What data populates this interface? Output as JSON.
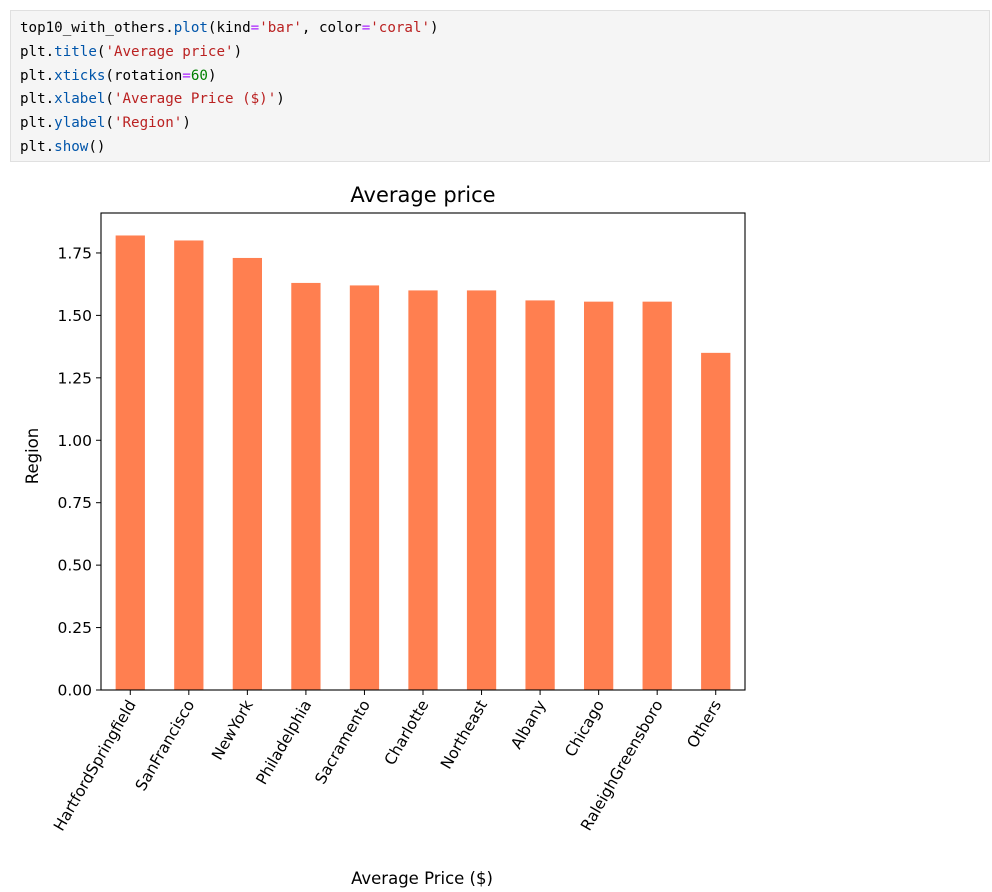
{
  "code": {
    "lines": [
      [
        {
          "t": "top10_with_others."
        },
        {
          "t": "plot",
          "c": "fn"
        },
        {
          "t": "(kind"
        },
        {
          "t": "=",
          "c": "op"
        },
        {
          "t": "'bar'",
          "c": "str"
        },
        {
          "t": ", color"
        },
        {
          "t": "=",
          "c": "op"
        },
        {
          "t": "'coral'",
          "c": "str"
        },
        {
          "t": ")"
        }
      ],
      [
        {
          "t": "plt."
        },
        {
          "t": "title",
          "c": "fn"
        },
        {
          "t": "("
        },
        {
          "t": "'Average price'",
          "c": "str"
        },
        {
          "t": ")"
        }
      ],
      [
        {
          "t": "plt."
        },
        {
          "t": "xticks",
          "c": "fn"
        },
        {
          "t": "(rotation"
        },
        {
          "t": "=",
          "c": "op"
        },
        {
          "t": "60",
          "c": "num"
        },
        {
          "t": ")"
        }
      ],
      [
        {
          "t": "plt."
        },
        {
          "t": "xlabel",
          "c": "fn"
        },
        {
          "t": "("
        },
        {
          "t": "'Average Price ($)'",
          "c": "str"
        },
        {
          "t": ")"
        }
      ],
      [
        {
          "t": "plt."
        },
        {
          "t": "ylabel",
          "c": "fn"
        },
        {
          "t": "("
        },
        {
          "t": "'Region'",
          "c": "str"
        },
        {
          "t": ")"
        }
      ],
      [
        {
          "t": "plt."
        },
        {
          "t": "show",
          "c": "fn"
        },
        {
          "t": "()"
        }
      ]
    ]
  },
  "chart_data": {
    "type": "bar",
    "title": "Average price",
    "xlabel": "Average Price ($)",
    "ylabel": "Region",
    "categories": [
      "HartfordSpringfield",
      "SanFrancisco",
      "NewYork",
      "Philadelphia",
      "Sacramento",
      "Charlotte",
      "Northeast",
      "Albany",
      "Chicago",
      "RaleighGreensboro",
      "Others"
    ],
    "values": [
      1.82,
      1.8,
      1.73,
      1.63,
      1.62,
      1.6,
      1.6,
      1.56,
      1.555,
      1.555,
      1.35
    ],
    "ylim": [
      0,
      1.91
    ],
    "yticks": [
      "0.00",
      "0.25",
      "0.50",
      "0.75",
      "1.00",
      "1.25",
      "1.50",
      "1.75"
    ],
    "xtick_rotation": 60,
    "bar_color": "#ff7f50",
    "grid": false,
    "legend": "none"
  }
}
